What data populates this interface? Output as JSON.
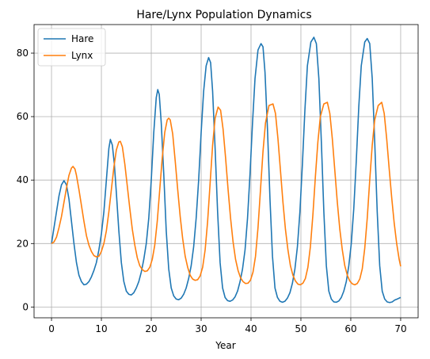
{
  "chart_data": {
    "type": "line",
    "title": "Hare/Lynx Population Dynamics",
    "xlabel": "Year",
    "ylabel": "",
    "xlim": [
      -3.5,
      73.5
    ],
    "ylim": [
      -3.4,
      89
    ],
    "xticks": [
      0,
      10,
      20,
      30,
      40,
      50,
      60,
      70
    ],
    "yticks": [
      0,
      20,
      40,
      60,
      80
    ],
    "grid": true,
    "legend_position": "top-left",
    "series": [
      {
        "name": "Hare",
        "color": "#1f77b4",
        "points": [
          [
            0,
            20
          ],
          [
            0.5,
            25
          ],
          [
            1,
            30
          ],
          [
            1.5,
            35
          ],
          [
            2,
            38.5
          ],
          [
            2.5,
            39.8
          ],
          [
            3,
            38.5
          ],
          [
            3.5,
            34
          ],
          [
            4,
            27
          ],
          [
            4.5,
            20
          ],
          [
            5,
            14
          ],
          [
            5.5,
            10
          ],
          [
            6,
            8
          ],
          [
            6.5,
            7
          ],
          [
            7,
            7.2
          ],
          [
            7.5,
            8
          ],
          [
            8,
            9.5
          ],
          [
            8.5,
            11.5
          ],
          [
            9,
            14
          ],
          [
            9.5,
            18
          ],
          [
            10,
            23
          ],
          [
            10.5,
            30
          ],
          [
            11,
            40
          ],
          [
            11.5,
            50
          ],
          [
            11.8,
            52.8
          ],
          [
            12.2,
            51
          ],
          [
            12.6,
            45
          ],
          [
            13,
            36
          ],
          [
            13.5,
            24
          ],
          [
            14,
            14
          ],
          [
            14.5,
            8
          ],
          [
            15,
            5
          ],
          [
            15.5,
            4
          ],
          [
            16,
            3.8
          ],
          [
            16.5,
            4.5
          ],
          [
            17,
            6
          ],
          [
            17.5,
            8
          ],
          [
            18,
            11
          ],
          [
            18.5,
            15
          ],
          [
            19,
            20
          ],
          [
            19.5,
            28
          ],
          [
            20,
            40
          ],
          [
            20.5,
            55
          ],
          [
            21,
            66
          ],
          [
            21.3,
            68.5
          ],
          [
            21.6,
            67
          ],
          [
            22,
            58
          ],
          [
            22.5,
            42
          ],
          [
            23,
            24
          ],
          [
            23.5,
            12
          ],
          [
            24,
            6
          ],
          [
            24.5,
            3.5
          ],
          [
            25,
            2.5
          ],
          [
            25.5,
            2.3
          ],
          [
            26,
            2.8
          ],
          [
            26.5,
            4
          ],
          [
            27,
            6
          ],
          [
            27.5,
            9
          ],
          [
            28,
            13
          ],
          [
            28.5,
            19
          ],
          [
            29,
            28
          ],
          [
            29.5,
            40
          ],
          [
            30,
            55
          ],
          [
            30.5,
            68
          ],
          [
            31,
            76
          ],
          [
            31.5,
            78.6
          ],
          [
            31.9,
            77
          ],
          [
            32.3,
            68
          ],
          [
            32.8,
            50
          ],
          [
            33.3,
            30
          ],
          [
            33.8,
            14
          ],
          [
            34.3,
            6
          ],
          [
            34.8,
            3
          ],
          [
            35.3,
            2
          ],
          [
            35.8,
            1.8
          ],
          [
            36.3,
            2.2
          ],
          [
            36.8,
            3.2
          ],
          [
            37.3,
            5
          ],
          [
            37.8,
            8
          ],
          [
            38.3,
            12
          ],
          [
            38.8,
            18
          ],
          [
            39.3,
            28
          ],
          [
            39.8,
            42
          ],
          [
            40.3,
            58
          ],
          [
            40.8,
            72
          ],
          [
            41.4,
            81
          ],
          [
            42,
            83
          ],
          [
            42.4,
            82
          ],
          [
            42.8,
            74
          ],
          [
            43.3,
            56
          ],
          [
            43.8,
            34
          ],
          [
            44.3,
            16
          ],
          [
            44.8,
            6
          ],
          [
            45.3,
            3
          ],
          [
            45.8,
            1.8
          ],
          [
            46.3,
            1.5
          ],
          [
            46.8,
            1.8
          ],
          [
            47.3,
            2.8
          ],
          [
            47.8,
            4.5
          ],
          [
            48.3,
            7.5
          ],
          [
            48.8,
            12
          ],
          [
            49.3,
            19
          ],
          [
            49.8,
            30
          ],
          [
            50.3,
            45
          ],
          [
            50.8,
            62
          ],
          [
            51.3,
            76
          ],
          [
            52,
            83.5
          ],
          [
            52.6,
            85
          ],
          [
            53.1,
            83
          ],
          [
            53.6,
            72
          ],
          [
            54.1,
            52
          ],
          [
            54.6,
            30
          ],
          [
            55.1,
            13
          ],
          [
            55.6,
            5
          ],
          [
            56.1,
            2.5
          ],
          [
            56.6,
            1.6
          ],
          [
            57.1,
            1.5
          ],
          [
            57.6,
            1.9
          ],
          [
            58.1,
            3
          ],
          [
            58.6,
            5
          ],
          [
            59.1,
            8
          ],
          [
            59.6,
            13
          ],
          [
            60.1,
            20
          ],
          [
            60.6,
            31
          ],
          [
            61.1,
            46
          ],
          [
            61.6,
            63
          ],
          [
            62.1,
            76
          ],
          [
            62.8,
            83.5
          ],
          [
            63.3,
            84.6
          ],
          [
            63.8,
            83
          ],
          [
            64.3,
            72
          ],
          [
            64.8,
            52
          ],
          [
            65.3,
            30
          ],
          [
            65.8,
            13
          ],
          [
            66.3,
            5
          ],
          [
            66.8,
            2.5
          ],
          [
            67.3,
            1.6
          ],
          [
            67.8,
            1.4
          ],
          [
            68.3,
            1.6
          ],
          [
            68.8,
            2.2
          ],
          [
            69.3,
            2.5
          ],
          [
            69.7,
            2.8
          ],
          [
            70,
            3
          ]
        ]
      },
      {
        "name": "Lynx",
        "color": "#ff7f0e",
        "points": [
          [
            0,
            20
          ],
          [
            0.5,
            20.5
          ],
          [
            1,
            22
          ],
          [
            1.5,
            25
          ],
          [
            2,
            28.5
          ],
          [
            2.5,
            33
          ],
          [
            3,
            37.5
          ],
          [
            3.5,
            41.5
          ],
          [
            4,
            43.8
          ],
          [
            4.3,
            44.3
          ],
          [
            4.7,
            43.5
          ],
          [
            5,
            41.5
          ],
          [
            5.5,
            37
          ],
          [
            6,
            32
          ],
          [
            6.5,
            27
          ],
          [
            7,
            22.5
          ],
          [
            7.5,
            19.5
          ],
          [
            8,
            17.5
          ],
          [
            8.5,
            16.2
          ],
          [
            9,
            15.8
          ],
          [
            9.5,
            16
          ],
          [
            10,
            17.5
          ],
          [
            10.5,
            20
          ],
          [
            11,
            24
          ],
          [
            11.5,
            30
          ],
          [
            12,
            37
          ],
          [
            12.5,
            44
          ],
          [
            13,
            49.5
          ],
          [
            13.5,
            52
          ],
          [
            13.8,
            52.2
          ],
          [
            14.2,
            50.5
          ],
          [
            14.7,
            45
          ],
          [
            15.2,
            38
          ],
          [
            15.7,
            31
          ],
          [
            16.2,
            24.5
          ],
          [
            16.7,
            19.5
          ],
          [
            17.2,
            15.5
          ],
          [
            17.7,
            13
          ],
          [
            18.2,
            11.8
          ],
          [
            18.7,
            11.2
          ],
          [
            19.2,
            11.4
          ],
          [
            19.7,
            12.5
          ],
          [
            20.2,
            15
          ],
          [
            20.7,
            19.5
          ],
          [
            21.2,
            27
          ],
          [
            21.7,
            37
          ],
          [
            22.2,
            47
          ],
          [
            22.7,
            55
          ],
          [
            23.2,
            59
          ],
          [
            23.5,
            59.5
          ],
          [
            23.8,
            59
          ],
          [
            24.3,
            54.5
          ],
          [
            24.8,
            46
          ],
          [
            25.3,
            37
          ],
          [
            25.8,
            28.5
          ],
          [
            26.3,
            21.5
          ],
          [
            26.8,
            16
          ],
          [
            27.3,
            12.5
          ],
          [
            27.8,
            10
          ],
          [
            28.3,
            8.8
          ],
          [
            28.8,
            8.4
          ],
          [
            29.3,
            8.6
          ],
          [
            29.8,
            9.8
          ],
          [
            30.3,
            12.5
          ],
          [
            30.8,
            18
          ],
          [
            31.3,
            27
          ],
          [
            31.8,
            39
          ],
          [
            32.3,
            51
          ],
          [
            32.8,
            59.5
          ],
          [
            33.4,
            63
          ],
          [
            33.9,
            62
          ],
          [
            34.4,
            56
          ],
          [
            34.9,
            47
          ],
          [
            35.4,
            37
          ],
          [
            35.9,
            28
          ],
          [
            36.4,
            20.5
          ],
          [
            36.9,
            15
          ],
          [
            37.4,
            11.5
          ],
          [
            37.9,
            9.2
          ],
          [
            38.4,
            8
          ],
          [
            38.9,
            7.4
          ],
          [
            39.4,
            7.5
          ],
          [
            39.9,
            8.5
          ],
          [
            40.4,
            11
          ],
          [
            40.9,
            16
          ],
          [
            41.4,
            25
          ],
          [
            41.9,
            37
          ],
          [
            42.4,
            49
          ],
          [
            42.9,
            58
          ],
          [
            43.6,
            63.5
          ],
          [
            44.4,
            64
          ],
          [
            44.9,
            61
          ],
          [
            45.4,
            53
          ],
          [
            45.9,
            43
          ],
          [
            46.4,
            33
          ],
          [
            46.9,
            24.5
          ],
          [
            47.4,
            18
          ],
          [
            47.9,
            13
          ],
          [
            48.4,
            10
          ],
          [
            48.9,
            8.2
          ],
          [
            49.4,
            7.2
          ],
          [
            49.9,
            7
          ],
          [
            50.4,
            7.5
          ],
          [
            50.9,
            9
          ],
          [
            51.4,
            12.5
          ],
          [
            51.9,
            19
          ],
          [
            52.4,
            29
          ],
          [
            52.9,
            41
          ],
          [
            53.4,
            52
          ],
          [
            53.9,
            60
          ],
          [
            54.6,
            64
          ],
          [
            55.3,
            64.5
          ],
          [
            55.8,
            61
          ],
          [
            56.3,
            53
          ],
          [
            56.8,
            43
          ],
          [
            57.3,
            33
          ],
          [
            57.8,
            24.5
          ],
          [
            58.3,
            18
          ],
          [
            58.8,
            13
          ],
          [
            59.3,
            10
          ],
          [
            59.8,
            8.2
          ],
          [
            60.3,
            7.3
          ],
          [
            60.8,
            7
          ],
          [
            61.3,
            7.4
          ],
          [
            61.8,
            8.8
          ],
          [
            62.3,
            12
          ],
          [
            62.8,
            18.5
          ],
          [
            63.3,
            28
          ],
          [
            63.8,
            40
          ],
          [
            64.3,
            51
          ],
          [
            64.8,
            59
          ],
          [
            65.5,
            63.5
          ],
          [
            66.2,
            64.5
          ],
          [
            66.7,
            61
          ],
          [
            67.2,
            53
          ],
          [
            67.7,
            43.5
          ],
          [
            68.2,
            34.5
          ],
          [
            68.7,
            26.5
          ],
          [
            69.2,
            20
          ],
          [
            69.7,
            15
          ],
          [
            70,
            12.8
          ]
        ]
      }
    ]
  }
}
